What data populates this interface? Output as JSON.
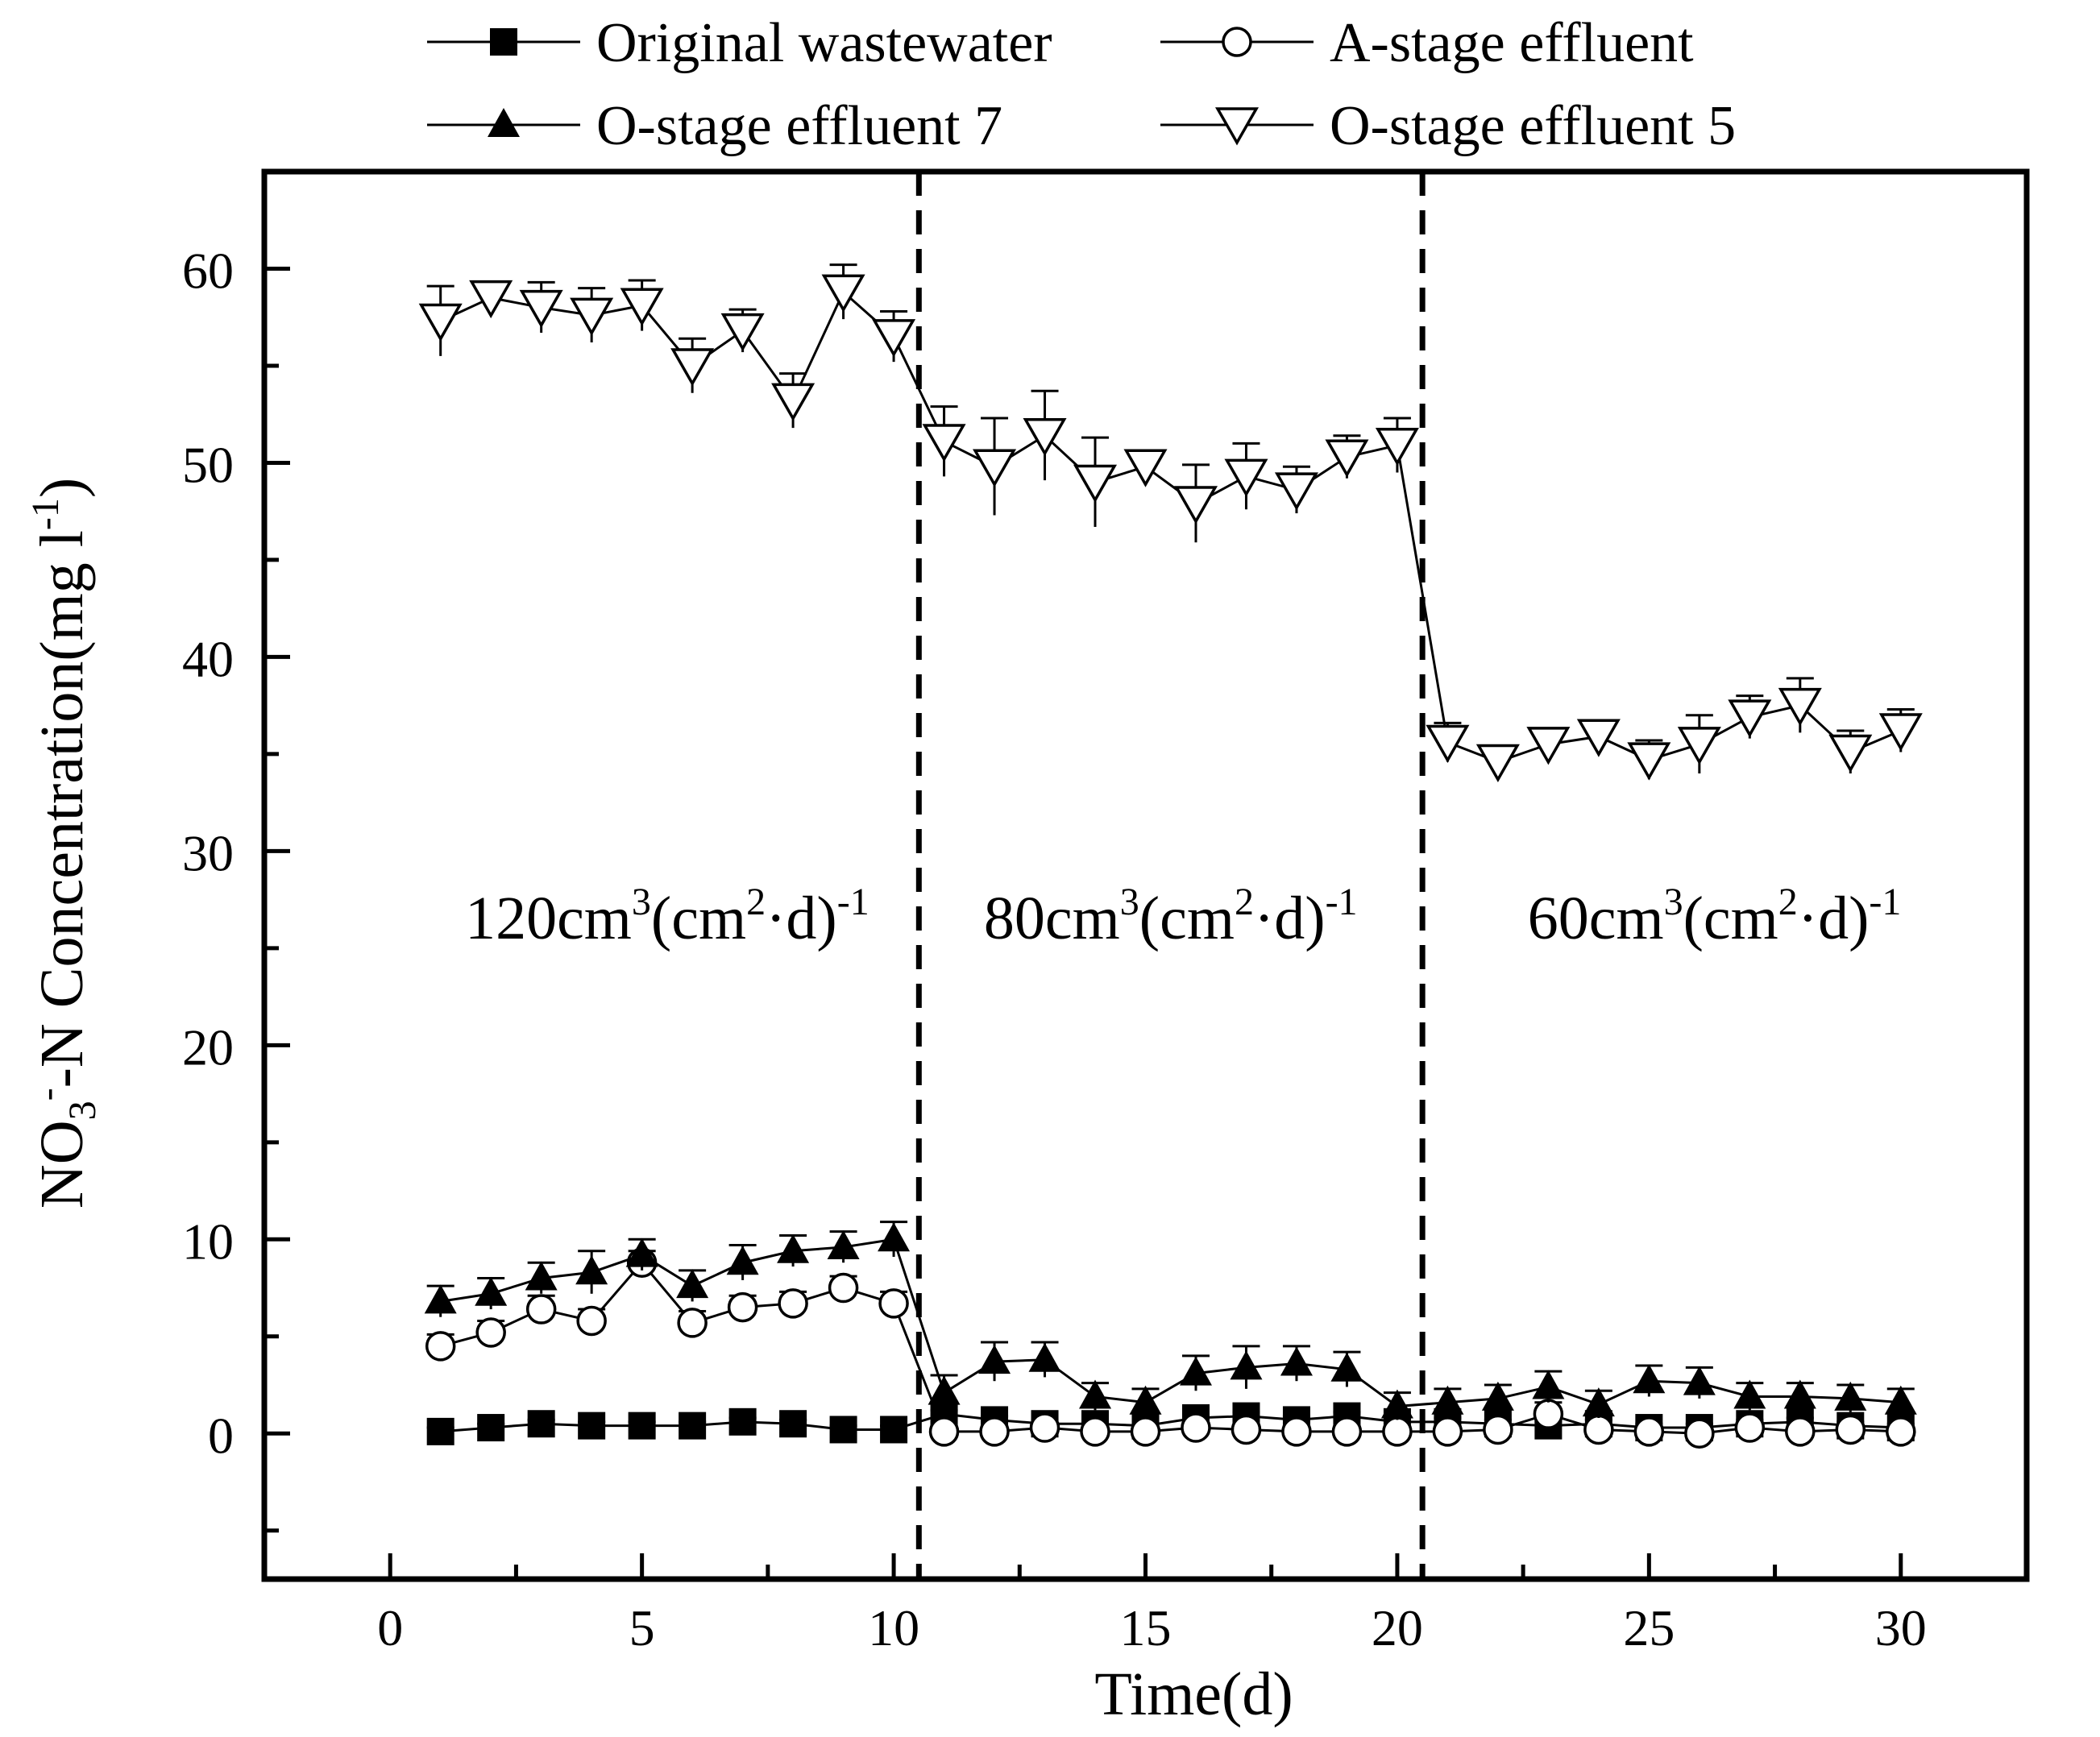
{
  "chart_data": {
    "type": "line",
    "title": "",
    "xlabel": "Time(d)",
    "ylabel": {
      "prefix": "NO",
      "sub": "3",
      "sup": "-",
      "suffix": "-N Concentration(mg l",
      "unit_sup": "-1",
      "close": ")"
    },
    "xlim": [
      -2.5,
      32.5
    ],
    "ylim": [
      -7.5,
      65
    ],
    "x_ticks": [
      0,
      5,
      10,
      15,
      20,
      25,
      30
    ],
    "y_ticks": [
      0,
      10,
      20,
      30,
      40,
      50,
      60
    ],
    "dividers": [
      10.5,
      20.5
    ],
    "phase_labels": [
      {
        "x": 5.5,
        "y": 25.5,
        "base": "120cm",
        "sup1": "3",
        "mid": "(cm",
        "sup2": "2",
        "dot": "·d)",
        "sup3": "-1"
      },
      {
        "x": 15.5,
        "y": 25.5,
        "base": "80cm",
        "sup1": "3",
        "mid": "(cm",
        "sup2": "2",
        "dot": "·d)",
        "sup3": "-1"
      },
      {
        "x": 26.3,
        "y": 25.5,
        "base": "60cm",
        "sup1": "3",
        "mid": "(cm",
        "sup2": "2",
        "dot": "·d)",
        "sup3": "-1"
      }
    ],
    "x": [
      1,
      2,
      3,
      4,
      5,
      6,
      7,
      8,
      9,
      10,
      11,
      12,
      13,
      14,
      15,
      16,
      17,
      18,
      19,
      20,
      21,
      22,
      23,
      24,
      25,
      26,
      27,
      28,
      29,
      30
    ],
    "series": [
      {
        "name": "Original wastewater",
        "marker": "square-filled",
        "values": [
          0.1,
          0.3,
          0.5,
          0.4,
          0.4,
          0.4,
          0.6,
          0.5,
          0.2,
          0.2,
          1.0,
          0.7,
          0.5,
          0.5,
          0.4,
          0.8,
          0.9,
          0.7,
          0.9,
          0.6,
          0.6,
          0.5,
          0.4,
          0.5,
          0.3,
          0.3,
          0.5,
          0.6,
          0.4,
          0.3
        ],
        "errors": [
          0.2,
          0.2,
          0.2,
          0.2,
          0.2,
          0.2,
          0.2,
          0.2,
          0.2,
          0.2,
          0.2,
          0.2,
          0.2,
          0.2,
          0.2,
          0.2,
          0.2,
          0.2,
          0.2,
          0.2,
          0.2,
          0.2,
          0.2,
          0.2,
          0.2,
          0.2,
          0.2,
          0.2,
          0.2,
          0.2
        ]
      },
      {
        "name": "A-stage effluent",
        "marker": "circle-open",
        "values": [
          4.5,
          5.2,
          6.4,
          5.8,
          8.8,
          5.7,
          6.5,
          6.7,
          7.5,
          6.7,
          0.1,
          0.1,
          0.3,
          0.1,
          0.1,
          0.3,
          0.2,
          0.1,
          0.1,
          0.1,
          0.1,
          0.2,
          1.0,
          0.2,
          0.1,
          0.0,
          0.3,
          0.1,
          0.2,
          0.1
        ],
        "errors": [
          0.6,
          0.6,
          0.7,
          0.6,
          0.6,
          0.6,
          0.6,
          0.6,
          0.6,
          0.6,
          0.2,
          0.2,
          0.2,
          0.2,
          0.2,
          0.2,
          0.2,
          0.2,
          0.2,
          0.2,
          0.2,
          0.2,
          0.6,
          0.2,
          0.2,
          0.2,
          0.2,
          0.2,
          0.2,
          0.2
        ]
      },
      {
        "name": "O-stage effluent 7",
        "marker": "triangle-up-filled",
        "values": [
          6.8,
          7.2,
          8.0,
          8.3,
          9.2,
          7.6,
          8.8,
          9.4,
          9.6,
          10.0,
          2.1,
          3.7,
          3.8,
          1.9,
          1.6,
          3.1,
          3.4,
          3.6,
          3.3,
          1.4,
          1.6,
          1.8,
          2.4,
          1.5,
          2.7,
          2.6,
          1.9,
          1.9,
          1.8,
          1.6
        ],
        "errors": [
          0.8,
          0.8,
          0.8,
          1.1,
          0.8,
          0.8,
          0.9,
          0.8,
          0.8,
          0.9,
          0.9,
          1.0,
          0.9,
          0.7,
          0.7,
          0.9,
          1.1,
          0.9,
          0.9,
          0.7,
          0.7,
          0.7,
          0.8,
          0.7,
          0.8,
          0.8,
          0.7,
          0.7,
          0.7,
          0.7
        ]
      },
      {
        "name": "O-stage effluent 5",
        "marker": "triangle-down-open",
        "values": [
          57.3,
          58.5,
          58.0,
          57.6,
          58.1,
          55.0,
          56.8,
          53.2,
          58.8,
          56.5,
          51.1,
          49.8,
          51.4,
          49.0,
          49.8,
          47.9,
          49.3,
          48.6,
          50.3,
          50.9,
          35.6,
          34.6,
          35.5,
          35.9,
          34.7,
          35.5,
          36.9,
          37.5,
          35.1,
          36.2
        ],
        "errors": [
          1.8,
          0.7,
          1.3,
          1.4,
          1.3,
          1.4,
          1.1,
          1.4,
          1.4,
          1.3,
          1.8,
          2.5,
          2.3,
          2.3,
          0.8,
          2.0,
          1.7,
          1.2,
          1.1,
          1.4,
          1.0,
          0.7,
          0.8,
          0.7,
          1.0,
          1.5,
          1.1,
          1.4,
          1.1,
          1.1
        ]
      }
    ]
  }
}
